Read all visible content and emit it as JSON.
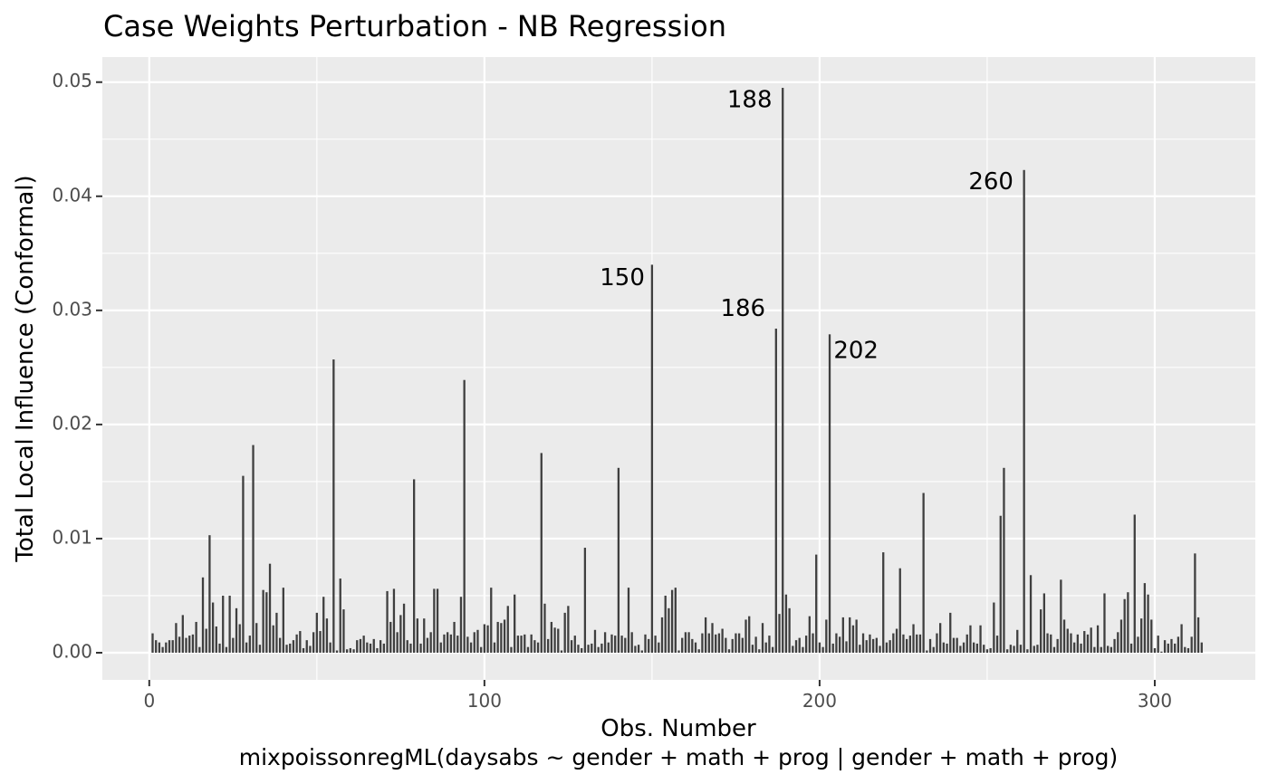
{
  "chart_data": {
    "type": "bar",
    "title": "Case Weights Perturbation - NB Regression",
    "xlabel": "Obs. Number",
    "caption": "mixpoissonregML(daysabs ~ gender + math + prog | gender + math + prog)",
    "ylabel": "Total Local Influence (Conformal)",
    "xlim": [
      -14,
      330
    ],
    "ylim": [
      -0.00238,
      0.0522
    ],
    "x_ticks": [
      0,
      100,
      200,
      300
    ],
    "x_tick_labels": [
      "0",
      "100",
      "200",
      "300"
    ],
    "y_ticks": [
      0.0,
      0.01,
      0.02,
      0.03,
      0.04,
      0.05
    ],
    "y_tick_labels": [
      "0.00",
      "0.01",
      "0.02",
      "0.03",
      "0.04",
      "0.05"
    ],
    "grid": true,
    "legend": "none",
    "bar_color": "#3f3f3f",
    "panel_color": "#ebebeb",
    "x_start": 1,
    "values": [
      0.0017,
      0.0011,
      0.0009,
      0.0005,
      0.0009,
      0.0011,
      0.0011,
      0.0026,
      0.0014,
      0.0033,
      0.0013,
      0.0015,
      0.0016,
      0.0027,
      0.0005,
      0.0066,
      0.0021,
      0.0103,
      0.0044,
      0.0023,
      0.0008,
      0.005,
      0.0005,
      0.005,
      0.0013,
      0.0039,
      0.0025,
      0.0155,
      0.0009,
      0.0015,
      0.0182,
      0.0026,
      0.0007,
      0.0055,
      0.0053,
      0.0078,
      0.0024,
      0.0035,
      0.0013,
      0.0057,
      0.0007,
      0.0008,
      0.0011,
      0.0016,
      0.0019,
      0.0004,
      0.0011,
      0.0006,
      0.0018,
      0.0035,
      0.0019,
      0.0049,
      0.003,
      0.0009,
      0.0257,
      0.0002,
      0.0065,
      0.0038,
      0.0003,
      0.0004,
      0.0003,
      0.0011,
      0.0012,
      0.0015,
      0.0009,
      0.0008,
      0.0012,
      0.0004,
      0.0011,
      0.0008,
      0.0054,
      0.0027,
      0.0056,
      0.0018,
      0.0033,
      0.0043,
      0.0011,
      0.0008,
      0.0152,
      0.003,
      0.0008,
      0.003,
      0.0013,
      0.0018,
      0.0056,
      0.0056,
      0.0009,
      0.0016,
      0.0018,
      0.0016,
      0.0027,
      0.0015,
      0.0049,
      0.0239,
      0.0014,
      0.0009,
      0.0018,
      0.002,
      0.0005,
      0.0025,
      0.0024,
      0.0057,
      0.0009,
      0.0027,
      0.0026,
      0.0029,
      0.0041,
      0.0005,
      0.0051,
      0.0015,
      0.0015,
      0.0016,
      0.0005,
      0.0016,
      0.0011,
      0.0009,
      0.0175,
      0.0043,
      0.0012,
      0.0027,
      0.0022,
      0.0021,
      0.0002,
      0.0035,
      0.0041,
      0.0011,
      0.0015,
      0.0007,
      0.0004,
      0.0092,
      0.0007,
      0.0008,
      0.002,
      0.0005,
      0.0008,
      0.0018,
      0.0009,
      0.0016,
      0.0015,
      0.0162,
      0.0015,
      0.0013,
      0.0057,
      0.0018,
      0.0006,
      0.0007,
      0.0002,
      0.0016,
      0.0012,
      0.034,
      0.0015,
      0.0009,
      0.0031,
      0.005,
      0.0039,
      0.0055,
      0.0057,
      0.0002,
      0.0013,
      0.0018,
      0.0018,
      0.0012,
      0.0009,
      0.0003,
      0.0017,
      0.0031,
      0.0017,
      0.0026,
      0.0016,
      0.0017,
      0.0021,
      0.0013,
      0.0003,
      0.0012,
      0.0017,
      0.0017,
      0.0013,
      0.0029,
      0.0032,
      0.0007,
      0.0014,
      0.0003,
      0.0026,
      0.0009,
      0.0015,
      0.0005,
      0.0284,
      0.0034,
      0.0495,
      0.0051,
      0.0039,
      0.0006,
      0.0011,
      0.0013,
      0.0005,
      0.0015,
      0.0032,
      0.0017,
      0.0086,
      0.0009,
      0.0005,
      0.0029,
      0.0279,
      0.0008,
      0.0017,
      0.0014,
      0.0031,
      0.001,
      0.0031,
      0.0024,
      0.0029,
      0.0007,
      0.0017,
      0.0011,
      0.0016,
      0.0012,
      0.0013,
      0.0006,
      0.0088,
      0.0009,
      0.0011,
      0.0017,
      0.0021,
      0.0074,
      0.0016,
      0.0012,
      0.0015,
      0.0025,
      0.0016,
      0.0016,
      0.014,
      0.0002,
      0.0012,
      0.0005,
      0.0017,
      0.0026,
      0.0009,
      0.0008,
      0.0035,
      0.0013,
      0.0013,
      0.0006,
      0.0009,
      0.0016,
      0.0024,
      0.0009,
      0.0008,
      0.0024,
      0.0007,
      0.0003,
      0.0004,
      0.0044,
      0.0015,
      0.012,
      0.0162,
      0.0003,
      0.0007,
      0.0006,
      0.002,
      0.0007,
      0.0423,
      0.0003,
      0.0068,
      0.0006,
      0.0007,
      0.0038,
      0.0052,
      0.0017,
      0.0016,
      0.0005,
      0.0012,
      0.0064,
      0.0029,
      0.0021,
      0.0017,
      0.0009,
      0.0016,
      0.0008,
      0.0019,
      0.0016,
      0.0022,
      0.0005,
      0.0024,
      0.0005,
      0.0052,
      0.0006,
      0.0005,
      0.0012,
      0.0018,
      0.0029,
      0.0047,
      0.0053,
      0.0008,
      0.0121,
      0.0014,
      0.003,
      0.0061,
      0.0051,
      0.0029,
      0.0004,
      0.0015,
      0.0001,
      0.0011,
      0.0008,
      0.0012,
      0.0008,
      0.0014,
      0.0025,
      0.0005,
      0.0004,
      0.0014,
      0.0087,
      0.0031,
      0.0009
    ],
    "annotations": [
      {
        "x": 150,
        "label": "150",
        "y": 0.0328
      },
      {
        "x": 186,
        "label": "186",
        "y": 0.0301
      },
      {
        "x": 188,
        "label": "188",
        "y": 0.0484
      },
      {
        "x": 202,
        "label": "202",
        "y": 0.0264
      },
      {
        "x": 260,
        "label": "260",
        "y": 0.0412
      }
    ]
  }
}
